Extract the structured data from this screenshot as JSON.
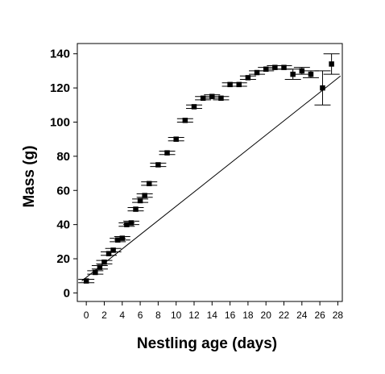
{
  "chart_data": {
    "type": "scatter",
    "title": "",
    "xlabel": "Nestling age (days)",
    "ylabel": "Mass (g)",
    "xlim": [
      -1,
      28.5
    ],
    "ylim": [
      -5,
      146
    ],
    "xticks": [
      0,
      2,
      4,
      6,
      8,
      10,
      12,
      14,
      16,
      18,
      20,
      22,
      24,
      26,
      28
    ],
    "yticks": [
      0,
      20,
      40,
      60,
      80,
      100,
      120,
      140
    ],
    "grid": false,
    "marker": "square",
    "error_bars": true,
    "series": [
      {
        "points": [
          {
            "x": 0,
            "y": 7,
            "err": 1
          },
          {
            "x": 1,
            "y": 12,
            "err": 1
          },
          {
            "x": 1.5,
            "y": 15,
            "err": 1
          },
          {
            "x": 2,
            "y": 18,
            "err": 1
          },
          {
            "x": 2.5,
            "y": 23,
            "err": 1
          },
          {
            "x": 3,
            "y": 25,
            "err": 1
          },
          {
            "x": 3.5,
            "y": 31,
            "err": 1
          },
          {
            "x": 4,
            "y": 32,
            "err": 1
          },
          {
            "x": 4.5,
            "y": 40,
            "err": 1
          },
          {
            "x": 5,
            "y": 41,
            "err": 1
          },
          {
            "x": 5.5,
            "y": 49,
            "err": 1
          },
          {
            "x": 6,
            "y": 54,
            "err": 1
          },
          {
            "x": 6.5,
            "y": 57,
            "err": 1
          },
          {
            "x": 7,
            "y": 64,
            "err": 1
          },
          {
            "x": 8,
            "y": 75,
            "err": 1
          },
          {
            "x": 9,
            "y": 82,
            "err": 1
          },
          {
            "x": 10,
            "y": 90,
            "err": 1
          },
          {
            "x": 11,
            "y": 101,
            "err": 1
          },
          {
            "x": 12,
            "y": 109,
            "err": 1
          },
          {
            "x": 13,
            "y": 114,
            "err": 1
          },
          {
            "x": 14,
            "y": 115,
            "err": 1
          },
          {
            "x": 15,
            "y": 114,
            "err": 1
          },
          {
            "x": 16,
            "y": 122,
            "err": 1
          },
          {
            "x": 17,
            "y": 122,
            "err": 1
          },
          {
            "x": 18,
            "y": 126,
            "err": 1
          },
          {
            "x": 19,
            "y": 129,
            "err": 1
          },
          {
            "x": 20,
            "y": 131,
            "err": 1
          },
          {
            "x": 21,
            "y": 132,
            "err": 1
          },
          {
            "x": 22,
            "y": 132,
            "err": 1
          },
          {
            "x": 23,
            "y": 128,
            "err": 3
          },
          {
            "x": 24,
            "y": 130,
            "err": 2
          },
          {
            "x": 25,
            "y": 128,
            "err": 2
          },
          {
            "x": 26.3,
            "y": 120,
            "err": 10
          },
          {
            "x": 27.3,
            "y": 134,
            "err": 6
          }
        ]
      }
    ],
    "reference_line": {
      "x": [
        -0.5,
        28.3
      ],
      "y": [
        7,
        127
      ]
    }
  }
}
